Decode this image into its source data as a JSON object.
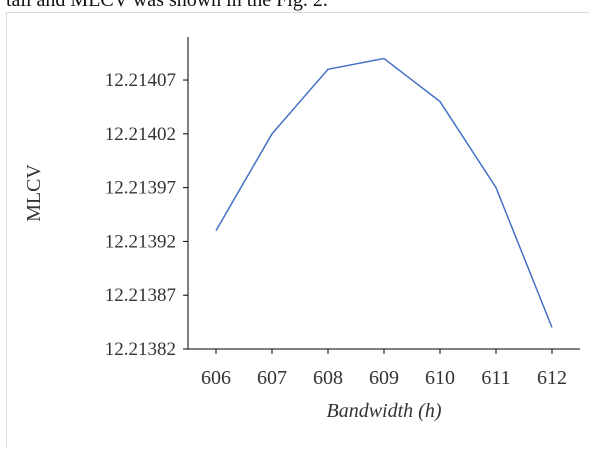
{
  "caption_fragment": "tail and MLCV was shown in the Fig. 2.",
  "chart_data": {
    "type": "line",
    "x": [
      606,
      607,
      608,
      609,
      610,
      611,
      612
    ],
    "series": [
      {
        "values": [
          12.21393,
          12.21402,
          12.21408,
          12.21409,
          12.21405,
          12.21397,
          12.21384
        ],
        "color": "#4472c4"
      }
    ],
    "xlabel": "Bandwidth (h)",
    "ylabel": "MLCV",
    "ylim": [
      12.21382,
      12.21411
    ],
    "y_ticks": [
      "12.21382",
      "12.21387",
      "12.21392",
      "12.21397",
      "12.21402",
      "12.21407"
    ],
    "x_ticks": [
      "606",
      "607",
      "608",
      "609",
      "610",
      "611",
      "612"
    ],
    "grid": false,
    "legend": "none"
  }
}
